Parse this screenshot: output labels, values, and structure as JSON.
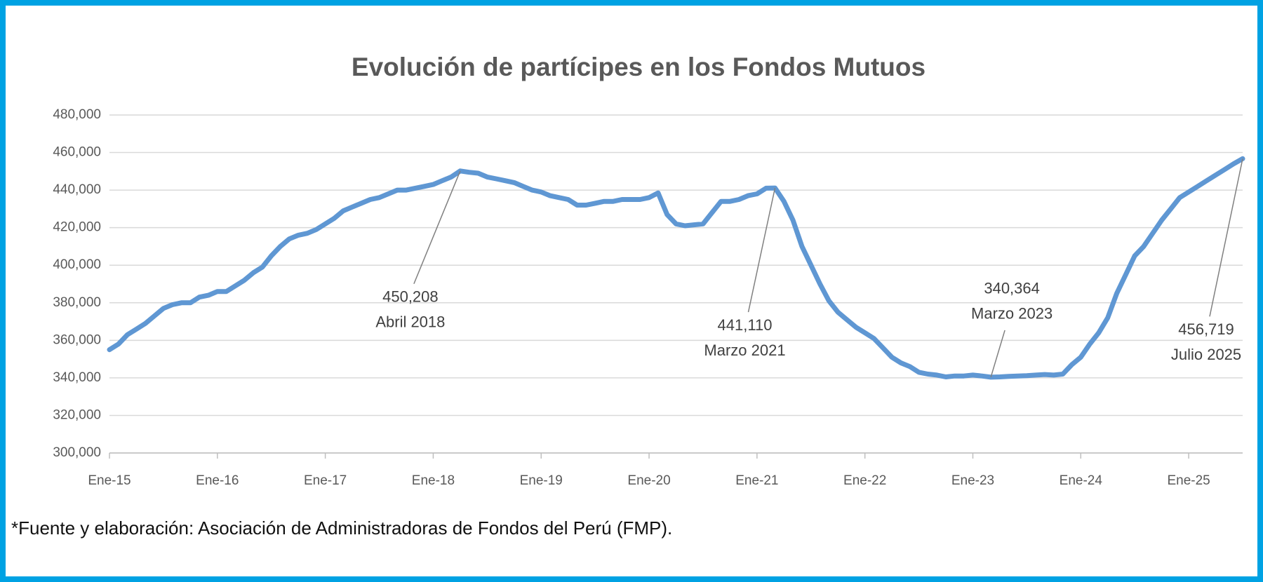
{
  "chart_data": {
    "type": "line",
    "title": "Evolución de partícipes en los Fondos Mutuos",
    "source": "*Fuente y elaboración: Asociación de Administradoras de Fondos del Perú (FMP).",
    "color": "#5f97d3",
    "grid": true,
    "ylim": [
      300000,
      480000
    ],
    "yticks": [
      {
        "value": 300000,
        "label": "300,000"
      },
      {
        "value": 320000,
        "label": "320,000"
      },
      {
        "value": 340000,
        "label": "340,000"
      },
      {
        "value": 360000,
        "label": "360,000"
      },
      {
        "value": 380000,
        "label": "380,000"
      },
      {
        "value": 400000,
        "label": "400,000"
      },
      {
        "value": 420000,
        "label": "420,000"
      },
      {
        "value": 440000,
        "label": "440,000"
      },
      {
        "value": 460000,
        "label": "460,000"
      },
      {
        "value": 480000,
        "label": "480,000"
      }
    ],
    "categories": [
      "Ene-15",
      null,
      null,
      null,
      null,
      null,
      null,
      null,
      null,
      null,
      null,
      null,
      "Ene-16",
      null,
      null,
      null,
      null,
      null,
      null,
      null,
      null,
      null,
      null,
      null,
      "Ene-17",
      null,
      null,
      null,
      null,
      null,
      null,
      null,
      null,
      null,
      null,
      null,
      "Ene-18",
      null,
      null,
      null,
      null,
      null,
      null,
      null,
      null,
      null,
      null,
      null,
      "Ene-19",
      null,
      null,
      null,
      null,
      null,
      null,
      null,
      null,
      null,
      null,
      null,
      "Ene-20",
      null,
      null,
      null,
      null,
      null,
      null,
      null,
      null,
      null,
      null,
      null,
      "Ene-21",
      null,
      null,
      null,
      null,
      null,
      null,
      null,
      null,
      null,
      null,
      null,
      "Ene-22",
      null,
      null,
      null,
      null,
      null,
      null,
      null,
      null,
      null,
      null,
      null,
      "Ene-23",
      null,
      null,
      null,
      null,
      null,
      null,
      null,
      null,
      null,
      null,
      null,
      "Ene-24",
      null,
      null,
      null,
      null,
      null,
      null,
      null,
      null,
      null,
      null,
      null,
      "Ene-25",
      null,
      null,
      null,
      null,
      null,
      null
    ],
    "values": [
      355000,
      358000,
      363000,
      366000,
      369000,
      373000,
      377000,
      379000,
      380000,
      380000,
      383000,
      384000,
      386000,
      386000,
      389000,
      392000,
      396000,
      399000,
      405000,
      410000,
      414000,
      416000,
      417000,
      419000,
      422000,
      425000,
      429000,
      431000,
      433000,
      435000,
      436000,
      438000,
      440000,
      440000,
      441000,
      442000,
      443000,
      445000,
      447000,
      450208,
      449500,
      449000,
      447000,
      446000,
      445000,
      444000,
      442000,
      440000,
      439000,
      437000,
      436000,
      435000,
      432000,
      432000,
      433000,
      434000,
      434000,
      435000,
      435000,
      435000,
      436000,
      438500,
      427000,
      422000,
      421000,
      421500,
      422000,
      428000,
      434000,
      434000,
      435000,
      437000,
      438000,
      441000,
      441110,
      434000,
      424000,
      410000,
      400000,
      390000,
      381000,
      375000,
      371000,
      367000,
      364000,
      361000,
      356000,
      351000,
      348000,
      346000,
      343000,
      342000,
      341500,
      340500,
      341000,
      341000,
      341500,
      341000,
      340364,
      340500,
      340800,
      341000,
      341200,
      341500,
      341800,
      341500,
      342000,
      347000,
      351000,
      358000,
      364000,
      372000,
      385000,
      395000,
      405000,
      410000,
      417000,
      424000,
      430000,
      436000,
      439000,
      442000,
      445000,
      448000,
      451000,
      454000,
      456719
    ],
    "annotations": [
      {
        "value": 450208,
        "label": "450,208",
        "text": "Abril 2018"
      },
      {
        "value": 441110,
        "label": "441,110",
        "text": "Marzo 2021"
      },
      {
        "value": 340364,
        "label": "340,364",
        "text": "Marzo 2023"
      },
      {
        "value": 456719,
        "label": "456,719",
        "text": "Julio 2025"
      }
    ]
  }
}
